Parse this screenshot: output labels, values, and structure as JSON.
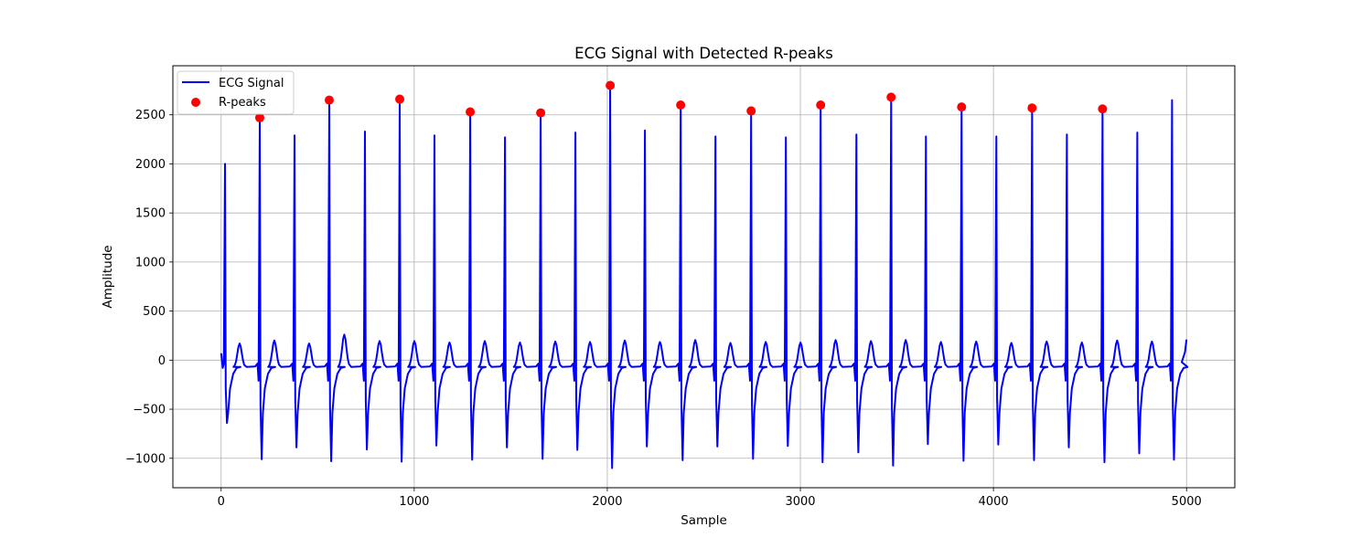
{
  "chart_data": {
    "type": "line",
    "title": "ECG Signal with Detected R-peaks",
    "xlabel": "Sample",
    "ylabel": "Amplitude",
    "xlim": [
      -250,
      5250
    ],
    "ylim": [
      -1300,
      3000
    ],
    "xticks": [
      0,
      1000,
      2000,
      3000,
      4000,
      5000
    ],
    "yticks": [
      -1000,
      -500,
      0,
      500,
      1000,
      1500,
      2000,
      2500
    ],
    "grid": true,
    "legend_position": "upper-left",
    "colors": {
      "signal": "#0000ff",
      "peaks": "#ff0000"
    },
    "signal": {
      "name": "ECG Signal",
      "start": {
        "x": 0,
        "y": 70
      },
      "end": {
        "x": 5000,
        "y": 210
      },
      "beats": [
        {
          "r": 20,
          "rAmp": 2000,
          "sAmp": -640,
          "tAmp": 170
        },
        {
          "r": 200,
          "rAmp": 2470,
          "sAmp": -1010,
          "tAmp": 200
        },
        {
          "r": 380,
          "rAmp": 2290,
          "sAmp": -890,
          "tAmp": 170
        },
        {
          "r": 560,
          "rAmp": 2650,
          "sAmp": -1030,
          "tAmp": 260
        },
        {
          "r": 745,
          "rAmp": 2330,
          "sAmp": -910,
          "tAmp": 195
        },
        {
          "r": 925,
          "rAmp": 2660,
          "sAmp": -1035,
          "tAmp": 195
        },
        {
          "r": 1105,
          "rAmp": 2290,
          "sAmp": -870,
          "tAmp": 180
        },
        {
          "r": 1290,
          "rAmp": 2530,
          "sAmp": -1015,
          "tAmp": 195
        },
        {
          "r": 1470,
          "rAmp": 2270,
          "sAmp": -890,
          "tAmp": 180
        },
        {
          "r": 1655,
          "rAmp": 2520,
          "sAmp": -1005,
          "tAmp": 190
        },
        {
          "r": 1835,
          "rAmp": 2320,
          "sAmp": -915,
          "tAmp": 185
        },
        {
          "r": 2015,
          "rAmp": 2800,
          "sAmp": -1100,
          "tAmp": 200
        },
        {
          "r": 2195,
          "rAmp": 2340,
          "sAmp": -880,
          "tAmp": 185
        },
        {
          "r": 2380,
          "rAmp": 2600,
          "sAmp": -1020,
          "tAmp": 205
        },
        {
          "r": 2560,
          "rAmp": 2280,
          "sAmp": -880,
          "tAmp": 175
        },
        {
          "r": 2745,
          "rAmp": 2540,
          "sAmp": -1005,
          "tAmp": 185
        },
        {
          "r": 2925,
          "rAmp": 2270,
          "sAmp": -875,
          "tAmp": 180
        },
        {
          "r": 3105,
          "rAmp": 2600,
          "sAmp": -1040,
          "tAmp": 205
        },
        {
          "r": 3290,
          "rAmp": 2300,
          "sAmp": -940,
          "tAmp": 195
        },
        {
          "r": 3470,
          "rAmp": 2680,
          "sAmp": -1075,
          "tAmp": 205
        },
        {
          "r": 3650,
          "rAmp": 2280,
          "sAmp": -855,
          "tAmp": 185
        },
        {
          "r": 3835,
          "rAmp": 2580,
          "sAmp": -1025,
          "tAmp": 190
        },
        {
          "r": 4015,
          "rAmp": 2280,
          "sAmp": -860,
          "tAmp": 175
        },
        {
          "r": 4200,
          "rAmp": 2570,
          "sAmp": -1020,
          "tAmp": 190
        },
        {
          "r": 4380,
          "rAmp": 2300,
          "sAmp": -890,
          "tAmp": 180
        },
        {
          "r": 4565,
          "rAmp": 2560,
          "sAmp": -1040,
          "tAmp": 200
        },
        {
          "r": 4745,
          "rAmp": 2320,
          "sAmp": -950,
          "tAmp": 190
        },
        {
          "r": 4925,
          "rAmp": 2650,
          "sAmp": -1015,
          "tAmp": null
        }
      ]
    },
    "peaks": {
      "name": "R-peaks",
      "x": [
        200,
        560,
        925,
        1290,
        1655,
        2015,
        2380,
        2745,
        3105,
        3470,
        3835,
        4200,
        4565
      ],
      "y": [
        2470,
        2650,
        2660,
        2530,
        2520,
        2800,
        2600,
        2540,
        2600,
        2680,
        2580,
        2570,
        2560
      ]
    }
  }
}
